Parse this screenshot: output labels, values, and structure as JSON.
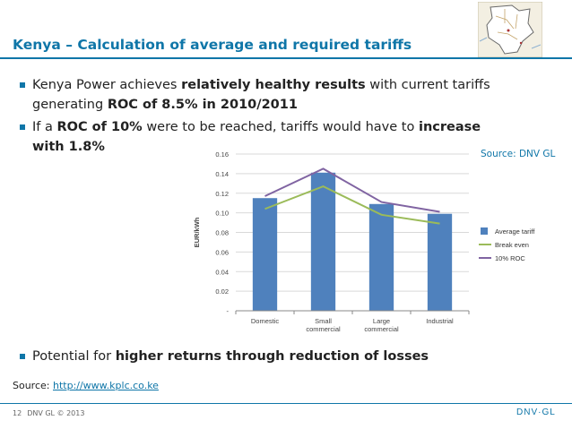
{
  "slide": {
    "title": "Kenya –  Calculation of average and required tariffs",
    "bullet1": {
      "line1_a": "Kenya Power achieves ",
      "line1_b": "relatively healthy results",
      "line1_c": " with current tariffs",
      "line2_a": "generating ",
      "line2_b": "ROC of 8.5%  in 2010/2011"
    },
    "bullet2": {
      "line1_a": "If a ",
      "line1_b": "ROC of 10%",
      "line1_c": "  were to be reached, tariffs would have to ",
      "line1_d": "increase",
      "line2_b": "with 1.8%"
    },
    "bullet3": {
      "a": "Potential for ",
      "b": "higher returns through reduction of losses"
    },
    "source_right": "Source:  DNV GL",
    "source_bottom_label": "Source: ",
    "source_bottom_link": "http://www.kplc.co.ke",
    "footer_page": "12",
    "footer_copyright": "DNV GL © 2013",
    "footer_logo": "DNV·GL",
    "colors": {
      "accent": "#0f76a8",
      "bar": "#4f81bd",
      "break_even": "#9bbb59",
      "roc": "#8064a2"
    },
    "map_icon": "kenya-map-icon"
  },
  "chart_data": {
    "type": "bar",
    "categories": [
      "Domestic",
      "Small commercial",
      "Large commercial",
      "Industrial"
    ],
    "category_lines": [
      [
        "Domestic"
      ],
      [
        "Small",
        "commercial"
      ],
      [
        "Large",
        "commercial"
      ],
      [
        "Industrial"
      ]
    ],
    "ylabel": "EUR/kWh",
    "ylim": [
      0,
      0.16
    ],
    "yticks": [
      "-",
      "0.02",
      "0.04",
      "0.06",
      "0.08",
      "0.10",
      "0.12",
      "0.14",
      "0.16"
    ],
    "grid": true,
    "legend_position": "right",
    "series": [
      {
        "name": "Average tariff",
        "kind": "bar",
        "values": [
          0.115,
          0.141,
          0.109,
          0.099
        ]
      },
      {
        "name": "Break even",
        "kind": "line",
        "values": [
          0.104,
          0.127,
          0.098,
          0.089
        ]
      },
      {
        "name": "10% ROC",
        "kind": "line",
        "values": [
          0.117,
          0.145,
          0.111,
          0.101
        ]
      }
    ]
  }
}
